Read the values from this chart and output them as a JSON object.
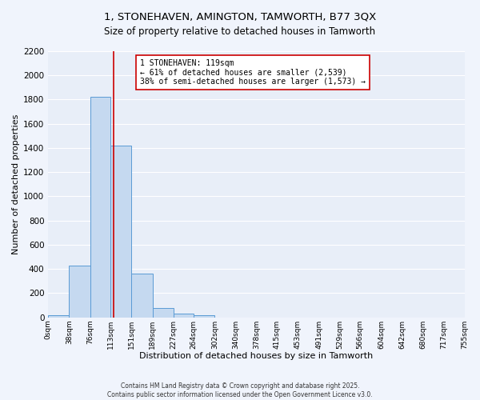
{
  "title_line1": "1, STONEHAVEN, AMINGTON, TAMWORTH, B77 3QX",
  "title_line2": "Size of property relative to detached houses in Tamworth",
  "xlabel": "Distribution of detached houses by size in Tamworth",
  "ylabel": "Number of detached properties",
  "bar_color": "#c5d9f0",
  "bar_edge_color": "#5b9bd5",
  "bin_edges": [
    0,
    38,
    76,
    113,
    151,
    189,
    227,
    264,
    302,
    340,
    378,
    415,
    453,
    491,
    529,
    566,
    604,
    642,
    680,
    717,
    755
  ],
  "bar_heights": [
    15,
    430,
    1820,
    1420,
    360,
    80,
    30,
    15,
    0,
    0,
    0,
    0,
    0,
    0,
    0,
    0,
    0,
    0,
    0,
    0
  ],
  "property_size": 119,
  "vline_color": "#cc0000",
  "annotation_text": "1 STONEHAVEN: 119sqm\n← 61% of detached houses are smaller (2,539)\n38% of semi-detached houses are larger (1,573) →",
  "annotation_box_color": "#ffffff",
  "annotation_border_color": "#cc0000",
  "ylim": [
    0,
    2200
  ],
  "yticks": [
    0,
    200,
    400,
    600,
    800,
    1000,
    1200,
    1400,
    1600,
    1800,
    2000,
    2200
  ],
  "xtick_labels": [
    "0sqm",
    "38sqm",
    "76sqm",
    "113sqm",
    "151sqm",
    "189sqm",
    "227sqm",
    "264sqm",
    "302sqm",
    "340sqm",
    "378sqm",
    "415sqm",
    "453sqm",
    "491sqm",
    "529sqm",
    "566sqm",
    "604sqm",
    "642sqm",
    "680sqm",
    "717sqm",
    "755sqm"
  ],
  "background_color": "#e8eef8",
  "grid_color": "#ffffff",
  "fig_background": "#f0f4fc",
  "footer_line1": "Contains HM Land Registry data © Crown copyright and database right 2025.",
  "footer_line2": "Contains public sector information licensed under the Open Government Licence v3.0."
}
